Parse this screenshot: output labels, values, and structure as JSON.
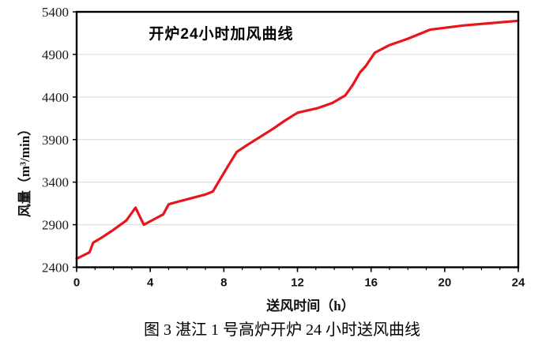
{
  "chart": {
    "inner_title": "开炉24小时加风曲线",
    "y_axis_title": "风量（m³/min）",
    "x_axis_title": "送风时间（h）"
  },
  "caption": "图 3  湛江 1 号高炉开炉 24 小时送风曲线",
  "chart_data": {
    "type": "line",
    "title": "开炉24小时加风曲线",
    "xlabel": "送风时间（h）",
    "ylabel": "风量（m³/min）",
    "xlim": [
      0,
      24
    ],
    "ylim": [
      2400,
      5400
    ],
    "x_major_ticks": [
      0,
      4,
      8,
      12,
      16,
      20,
      24
    ],
    "x_minor_tick_step": 1,
    "y_ticks": [
      2400,
      2900,
      3400,
      3900,
      4400,
      4900,
      5400
    ],
    "grid": "horizontal",
    "grid_color": "#d9d9d9",
    "legend": "none",
    "line_color": "#e8151b",
    "series": [
      {
        "name": "送风曲线",
        "x": [
          0,
          0.7,
          0.9,
          1.3,
          2,
          2.7,
          3.2,
          3.65,
          4.3,
          4.7,
          5.0,
          5.5,
          6.2,
          7.0,
          7.4,
          8.2,
          8.7,
          9.3,
          10,
          10.7,
          11.3,
          12,
          13.1,
          13.9,
          14.6,
          15.0,
          15.4,
          15.7,
          16.2,
          17,
          18,
          19.2,
          21,
          24
        ],
        "values": [
          2500,
          2575,
          2690,
          2740,
          2840,
          2950,
          3100,
          2900,
          2975,
          3020,
          3140,
          3170,
          3210,
          3255,
          3290,
          3580,
          3755,
          3840,
          3935,
          4030,
          4120,
          4215,
          4270,
          4330,
          4420,
          4540,
          4690,
          4760,
          4920,
          5010,
          5085,
          5190,
          5240,
          5295
        ]
      }
    ]
  }
}
